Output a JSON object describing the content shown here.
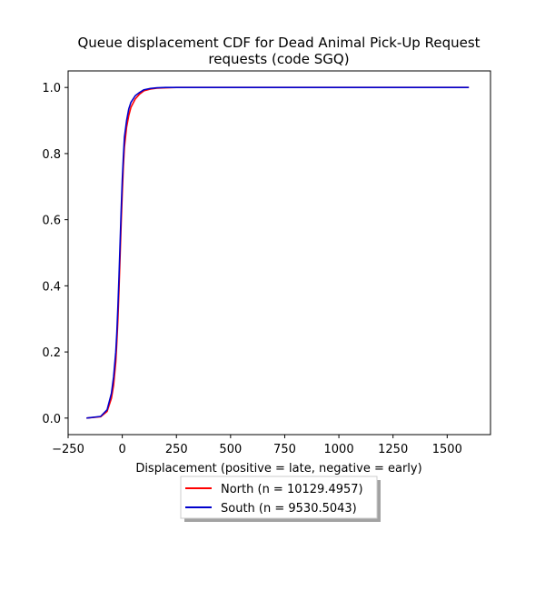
{
  "chart_data": {
    "type": "line",
    "title_line1": "Queue displacement CDF for Dead Animal Pick-Up Request",
    "title_line2": "requests (code SGQ)",
    "xlabel": "Displacement (positive = late, negative = early)",
    "ylabel": "",
    "xlim": [
      -250,
      1700
    ],
    "ylim": [
      -0.05,
      1.05
    ],
    "xticks": [
      -250,
      0,
      250,
      500,
      750,
      1000,
      1250,
      1500
    ],
    "xtick_labels": [
      "−250",
      "0",
      "250",
      "500",
      "750",
      "1000",
      "1250",
      "1500"
    ],
    "yticks": [
      0.0,
      0.2,
      0.4,
      0.6,
      0.8,
      1.0
    ],
    "ytick_labels": [
      "0.0",
      "0.2",
      "0.4",
      "0.6",
      "0.8",
      "1.0"
    ],
    "grid": false,
    "legend_position": "below-center",
    "series": [
      {
        "name": "North (n = 10129.4957)",
        "color": "#ff0000",
        "x": [
          -165,
          -100,
          -70,
          -50,
          -40,
          -30,
          -25,
          -20,
          -15,
          -10,
          -5,
          0,
          5,
          10,
          20,
          30,
          40,
          60,
          80,
          100,
          130,
          160,
          200,
          250,
          400,
          800,
          1200,
          1600
        ],
        "y": [
          0.0,
          0.004,
          0.02,
          0.06,
          0.1,
          0.17,
          0.23,
          0.3,
          0.39,
          0.49,
          0.59,
          0.68,
          0.76,
          0.82,
          0.88,
          0.915,
          0.94,
          0.965,
          0.98,
          0.99,
          0.995,
          0.998,
          0.999,
          1.0,
          1.0,
          1.0,
          1.0,
          1.0
        ]
      },
      {
        "name": "South (n = 9530.5043)",
        "color": "#0000cc",
        "x": [
          -165,
          -100,
          -70,
          -50,
          -40,
          -30,
          -25,
          -20,
          -15,
          -10,
          -5,
          0,
          5,
          10,
          20,
          30,
          40,
          60,
          80,
          100,
          130,
          160,
          200,
          250,
          400,
          800,
          1200,
          1600
        ],
        "y": [
          0.0,
          0.005,
          0.025,
          0.075,
          0.125,
          0.2,
          0.26,
          0.34,
          0.43,
          0.53,
          0.63,
          0.72,
          0.79,
          0.85,
          0.9,
          0.935,
          0.955,
          0.975,
          0.985,
          0.993,
          0.997,
          0.999,
          1.0,
          1.0,
          1.0,
          1.0,
          1.0,
          1.0
        ]
      }
    ]
  }
}
